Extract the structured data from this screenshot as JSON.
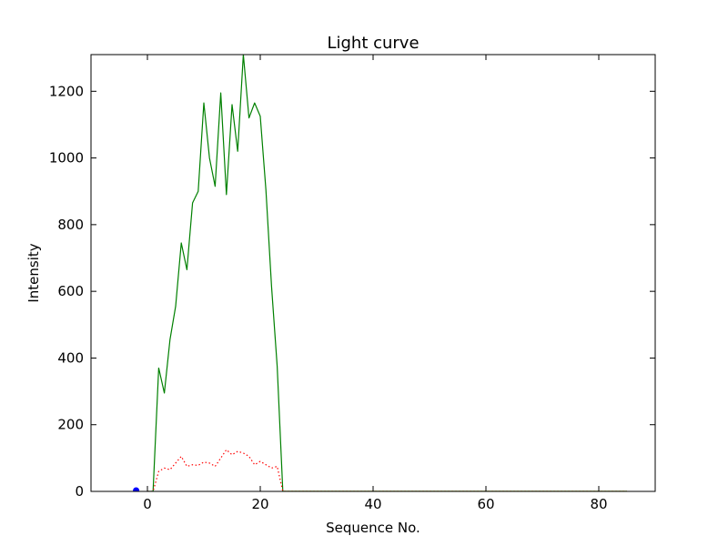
{
  "chart_data": {
    "type": "line",
    "title": "Light curve",
    "xlabel": "Sequence No.",
    "ylabel": "Intensity",
    "xlim": [
      -10,
      90
    ],
    "ylim": [
      0,
      1310
    ],
    "xticks": [
      0,
      20,
      40,
      60,
      80
    ],
    "yticks": [
      0,
      200,
      400,
      600,
      800,
      1000,
      1200
    ],
    "grid": false,
    "legend": "none",
    "series": [
      {
        "style": "solid",
        "color": "#008000",
        "x": [
          0,
          1,
          2,
          3,
          4,
          5,
          6,
          7,
          8,
          9,
          10,
          11,
          12,
          13,
          14,
          15,
          16,
          17,
          18,
          19,
          20,
          21,
          22,
          23,
          24,
          25,
          30,
          40,
          50,
          60,
          70,
          80,
          85
        ],
        "y": [
          0,
          0,
          370,
          295,
          455,
          555,
          745,
          665,
          865,
          900,
          1165,
          1000,
          915,
          1195,
          890,
          1160,
          1020,
          1310,
          1120,
          1165,
          1125,
          905,
          615,
          375,
          0,
          0,
          0,
          0,
          0,
          0,
          0,
          0,
          0
        ]
      },
      {
        "style": "dotted",
        "color": "#ff0000",
        "x": [
          0,
          1,
          2,
          3,
          4,
          5,
          6,
          7,
          8,
          9,
          10,
          11,
          12,
          13,
          14,
          15,
          16,
          17,
          18,
          19,
          20,
          21,
          22,
          23,
          24,
          25,
          30,
          40,
          50,
          60,
          70,
          80,
          85
        ],
        "y": [
          0,
          0,
          60,
          70,
          65,
          85,
          105,
          75,
          80,
          78,
          88,
          85,
          75,
          100,
          125,
          110,
          120,
          115,
          105,
          80,
          90,
          80,
          70,
          75,
          0,
          0,
          0,
          0,
          0,
          0,
          0,
          0,
          0
        ]
      },
      {
        "style": "solid",
        "color": "#bfbf00",
        "x": [
          24,
          30,
          40,
          50,
          60,
          70,
          80,
          85
        ],
        "y": [
          0,
          0,
          0,
          0,
          0,
          0,
          0,
          0
        ]
      },
      {
        "style": "marker",
        "color": "#0000ff",
        "x": [
          -2
        ],
        "y": [
          0
        ]
      }
    ]
  }
}
